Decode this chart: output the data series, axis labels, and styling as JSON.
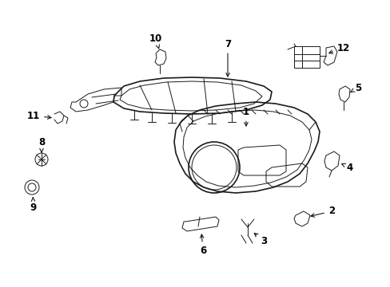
{
  "background_color": "#ffffff",
  "line_color": "#1a1a1a",
  "label_color": "#000000",
  "fig_width": 4.89,
  "fig_height": 3.6,
  "dpi": 100,
  "label_fontsize": 8.5,
  "lw_main": 1.2,
  "lw_thin": 0.7,
  "lw_med": 0.9
}
